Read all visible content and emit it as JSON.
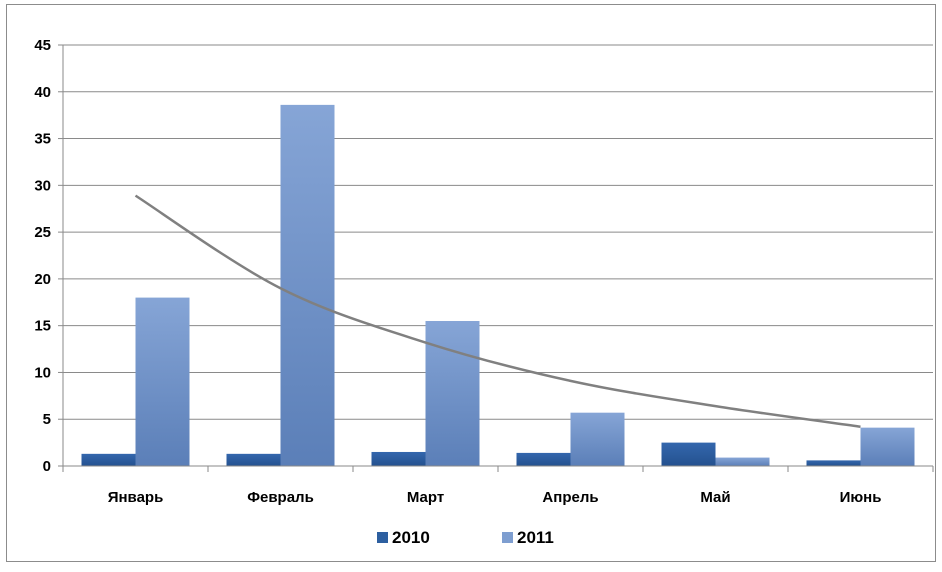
{
  "chart_data": {
    "type": "bar",
    "categories": [
      "Январь",
      "Февраль",
      "Март",
      "Апрель",
      "Май",
      "Июнь"
    ],
    "series": [
      {
        "name": "2010",
        "values": [
          1.3,
          1.3,
          1.5,
          1.4,
          2.5,
          0.6
        ],
        "color": "#2d5fa0"
      },
      {
        "name": "2011",
        "values": [
          18,
          38.6,
          15.5,
          5.7,
          0.9,
          4.1
        ],
        "color": "#7e9ed0"
      }
    ],
    "trendline": {
      "type": "logarithmic",
      "values": [
        28.9,
        19.0,
        13.2,
        9.1,
        6.4,
        4.2
      ],
      "color": "#808080"
    },
    "ylim": [
      0,
      45
    ],
    "yticks": [
      "0",
      "5",
      "10",
      "15",
      "20",
      "25",
      "30",
      "35",
      "40",
      "45"
    ],
    "grid": true,
    "legend": "bottom",
    "title": "",
    "xlabel": "",
    "ylabel": ""
  }
}
